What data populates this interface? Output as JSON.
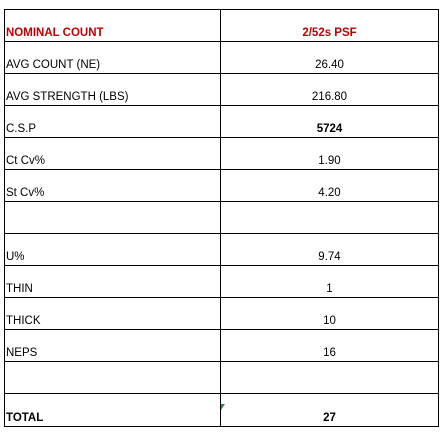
{
  "table": {
    "header": {
      "label": "NOMINAL COUNT",
      "value": "2/52s PSF"
    },
    "rows": [
      {
        "label": "AVG COUNT (NE)",
        "value": "26.40"
      },
      {
        "label": "AVG STRENGTH (LBS)",
        "value": "216.80"
      },
      {
        "label": "C.S.P",
        "value": "5724"
      },
      {
        "label": "Ct Cv%",
        "value": "1.90"
      },
      {
        "label": "St Cv%",
        "value": "4.20"
      },
      {
        "label": "",
        "value": ""
      },
      {
        "label": "U%",
        "value": "9.74"
      },
      {
        "label": "THIN",
        "value": "1"
      },
      {
        "label": "THICK",
        "value": "10"
      },
      {
        "label": "NEPS",
        "value": "16"
      },
      {
        "label": "",
        "value": ""
      }
    ],
    "total": {
      "label": "TOTAL",
      "value": "27"
    }
  },
  "colors": {
    "header_text": "#c00000",
    "grid": "#000000",
    "marker": "#2e8b2e"
  }
}
